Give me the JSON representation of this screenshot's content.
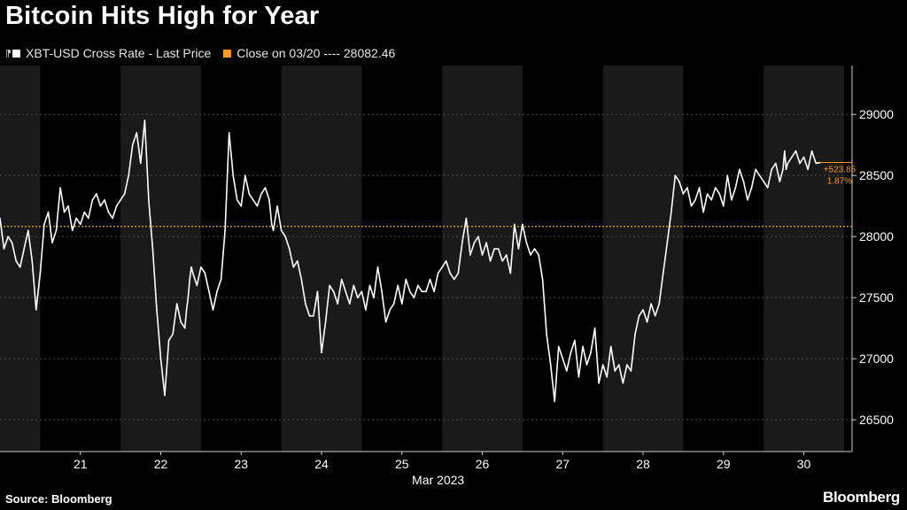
{
  "chart_data": {
    "type": "line",
    "title": "Bitcoin Hits High for Year",
    "series": [
      {
        "name": "XBT-USD Cross Rate - Last Price",
        "color": "#ffffff",
        "x": [
          20.0,
          20.05,
          20.1,
          20.15,
          20.2,
          20.25,
          20.3,
          20.35,
          20.4,
          20.45,
          20.5,
          20.55,
          20.6,
          20.65,
          20.7,
          20.75,
          20.8,
          20.85,
          20.9,
          20.95,
          21.0,
          21.05,
          21.1,
          21.15,
          21.2,
          21.25,
          21.3,
          21.35,
          21.4,
          21.45,
          21.5,
          21.55,
          21.6,
          21.65,
          21.7,
          21.75,
          21.8,
          21.85,
          21.9,
          21.95,
          22.0,
          22.05,
          22.1,
          22.15,
          22.2,
          22.25,
          22.3,
          22.32,
          22.34,
          22.36,
          22.38,
          22.4,
          22.45,
          22.5,
          22.55,
          22.6,
          22.65,
          22.7,
          22.75,
          22.8,
          22.85,
          22.9,
          22.95,
          23.0,
          23.05,
          23.1,
          23.15,
          23.2,
          23.25,
          23.3,
          23.35,
          23.38,
          23.4,
          23.45,
          23.5,
          23.55,
          23.6,
          23.65,
          23.7,
          23.75,
          23.8,
          23.85,
          23.9,
          23.95,
          24.0,
          24.05,
          24.1,
          24.15,
          24.2,
          24.25,
          24.3,
          24.35,
          24.4,
          24.45,
          24.5,
          24.55,
          24.6,
          24.65,
          24.7,
          24.75,
          24.8,
          24.85,
          24.9,
          24.95,
          25.0,
          25.05,
          25.1,
          25.15,
          25.2,
          25.25,
          25.3,
          25.35,
          25.4,
          25.45,
          25.5,
          25.55,
          25.6,
          25.65,
          25.7,
          25.75,
          25.8,
          25.85,
          25.9,
          25.95,
          26.0,
          26.05,
          26.1,
          26.15,
          26.2,
          26.25,
          26.3,
          26.35,
          26.4,
          26.45,
          26.5,
          26.55,
          26.6,
          26.65,
          26.7,
          26.75,
          26.8,
          26.85,
          26.9,
          26.95,
          27.0,
          27.05,
          27.1,
          27.15,
          27.2,
          27.25,
          27.3,
          27.35,
          27.4,
          27.45,
          27.5,
          27.55,
          27.6,
          27.65,
          27.7,
          27.75,
          27.8,
          27.85,
          27.9,
          27.95,
          28.0,
          28.05,
          28.1,
          28.15,
          28.2,
          28.25,
          28.3,
          28.35,
          28.4,
          28.45,
          28.5,
          28.55,
          28.6,
          28.65,
          28.7,
          28.75,
          28.8,
          28.85,
          28.9,
          28.95,
          29.0,
          29.05,
          29.1,
          29.15,
          29.2,
          29.25,
          29.3,
          29.35,
          29.4,
          29.45,
          29.5,
          29.55,
          29.6,
          29.65,
          29.7,
          29.72,
          29.74,
          29.76,
          29.78,
          29.8,
          29.85,
          29.9,
          29.95,
          30.0,
          30.05,
          30.1,
          30.15,
          30.2
        ],
        "y": [
          28150,
          27900,
          28000,
          27950,
          27800,
          27750,
          27900,
          28050,
          27800,
          27400,
          27700,
          28100,
          28200,
          27950,
          28050,
          28400,
          28200,
          28250,
          28050,
          28150,
          28100,
          28200,
          28150,
          28300,
          28350,
          28250,
          28300,
          28200,
          28150,
          28250,
          28300,
          28350,
          28500,
          28750,
          28850,
          28600,
          28950,
          28300,
          27900,
          27400,
          27000,
          26700,
          27150,
          27200,
          27450,
          27300,
          27250,
          27400,
          27500,
          27650,
          27750,
          27700,
          27600,
          27750,
          27700,
          27550,
          27400,
          27550,
          27650,
          28050,
          28850,
          28500,
          28300,
          28250,
          28500,
          28350,
          28300,
          28250,
          28350,
          28400,
          28300,
          28100,
          28050,
          28250,
          28050,
          28000,
          27900,
          27750,
          27800,
          27650,
          27450,
          27350,
          27350,
          27550,
          27050,
          27300,
          27600,
          27550,
          27450,
          27650,
          27550,
          27450,
          27600,
          27500,
          27550,
          27400,
          27600,
          27500,
          27750,
          27550,
          27300,
          27400,
          27450,
          27600,
          27450,
          27650,
          27550,
          27500,
          27600,
          27550,
          27550,
          27650,
          27550,
          27700,
          27750,
          27800,
          27700,
          27650,
          27700,
          27950,
          28150,
          27850,
          27950,
          28000,
          27850,
          27950,
          27800,
          27900,
          27900,
          27800,
          27850,
          27700,
          28100,
          27900,
          28100,
          27950,
          27850,
          27900,
          27850,
          27650,
          27200,
          26950,
          26650,
          27100,
          27000,
          26900,
          27050,
          27150,
          26850,
          27100,
          26950,
          27050,
          27250,
          26800,
          26950,
          26850,
          27100,
          26900,
          26950,
          26800,
          26950,
          26900,
          27200,
          27350,
          27400,
          27300,
          27450,
          27350,
          27450,
          27700,
          27950,
          28200,
          28500,
          28450,
          28350,
          28400,
          28250,
          28300,
          28400,
          28200,
          28350,
          28300,
          28400,
          28350,
          28250,
          28500,
          28300,
          28400,
          28550,
          28450,
          28300,
          28400,
          28550,
          28500,
          28450,
          28400,
          28550,
          28600,
          28450,
          28500,
          28550,
          28700,
          28550,
          28600,
          28650,
          28700,
          28600,
          28650,
          28550,
          28700,
          28600,
          28606
        ]
      },
      {
        "name": "Close on 03/20 ---- 28082.46",
        "color": "#f59a23",
        "value": 28082.46
      }
    ],
    "xlabel": "",
    "ylabel": "",
    "xlim": [
      20.0,
      30.6
    ],
    "ylim": [
      26240,
      29400
    ],
    "x_ticks": [
      {
        "value": 21,
        "label": "21"
      },
      {
        "value": 22,
        "label": "22"
      },
      {
        "value": 23,
        "label": "23"
      },
      {
        "value": 24,
        "label": "24"
      },
      {
        "value": 25,
        "label": "25"
      },
      {
        "value": 26,
        "label": "26"
      },
      {
        "value": 27,
        "label": "27"
      },
      {
        "value": 28,
        "label": "28"
      },
      {
        "value": 29,
        "label": "29"
      },
      {
        "value": 30,
        "label": "30"
      }
    ],
    "x_axis_sublabel": "Mar 2023",
    "y_ticks": [
      26500,
      27000,
      27500,
      28000,
      28500,
      29000
    ],
    "y_axis_side": "right",
    "grid": {
      "horizontal": true,
      "vertical": false
    },
    "shaded_bands_x": [
      [
        20.0,
        20.5
      ],
      [
        21.5,
        22.5
      ],
      [
        23.5,
        24.5
      ],
      [
        25.5,
        26.5
      ],
      [
        27.5,
        28.5
      ],
      [
        29.5,
        30.5
      ]
    ],
    "annotation": {
      "value": 28606.31,
      "change_label": "+523.85",
      "percent_label": "1.87%",
      "color": "#f59a23"
    },
    "legend_position": "top-left"
  },
  "header": {
    "title": "Bitcoin Hits High for Year",
    "legend_items": [
      {
        "label": "XBT-USD Cross Rate - Last Price",
        "color": "#ffffff"
      },
      {
        "label": "Close on 03/20 ---- 28082.46",
        "color": "#f59a23"
      }
    ]
  },
  "footer": {
    "source": "Source: Bloomberg",
    "logo": "Bloomberg"
  },
  "colors": {
    "background": "#000000",
    "band": "#1a1a1a",
    "grid": "#4d4d4d",
    "reference": "#d9b12a",
    "accent": "#f59a23",
    "line": "#ffffff"
  }
}
